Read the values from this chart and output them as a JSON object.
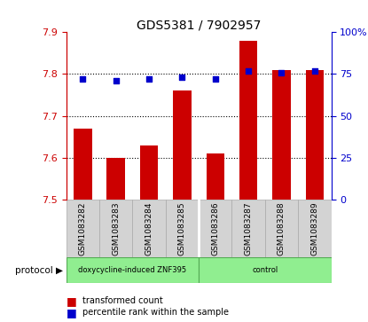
{
  "title": "GDS5381 / 7902957",
  "samples": [
    "GSM1083282",
    "GSM1083283",
    "GSM1083284",
    "GSM1083285",
    "GSM1083286",
    "GSM1083287",
    "GSM1083288",
    "GSM1083289"
  ],
  "bar_values": [
    7.67,
    7.6,
    7.63,
    7.76,
    7.61,
    7.88,
    7.81,
    7.81
  ],
  "percentile_values": [
    72,
    71,
    72,
    73,
    72,
    77,
    76,
    77
  ],
  "ylim": [
    7.5,
    7.9
  ],
  "yticks": [
    7.5,
    7.6,
    7.7,
    7.8,
    7.9
  ],
  "right_yticks": [
    0,
    25,
    50,
    75,
    100
  ],
  "bar_color": "#cc0000",
  "dot_color": "#0000cc",
  "bar_bottom": 7.5,
  "group1_label": "doxycycline-induced ZNF395",
  "group2_label": "control",
  "group_color": "#90ee90",
  "left_axis_color": "#cc0000",
  "right_axis_color": "#0000cc",
  "tick_label_area_color": "#d3d3d3",
  "protocol_label": "protocol",
  "legend_bar_label": "transformed count",
  "legend_dot_label": "percentile rank within the sample",
  "group1_count": 4,
  "group2_count": 4
}
